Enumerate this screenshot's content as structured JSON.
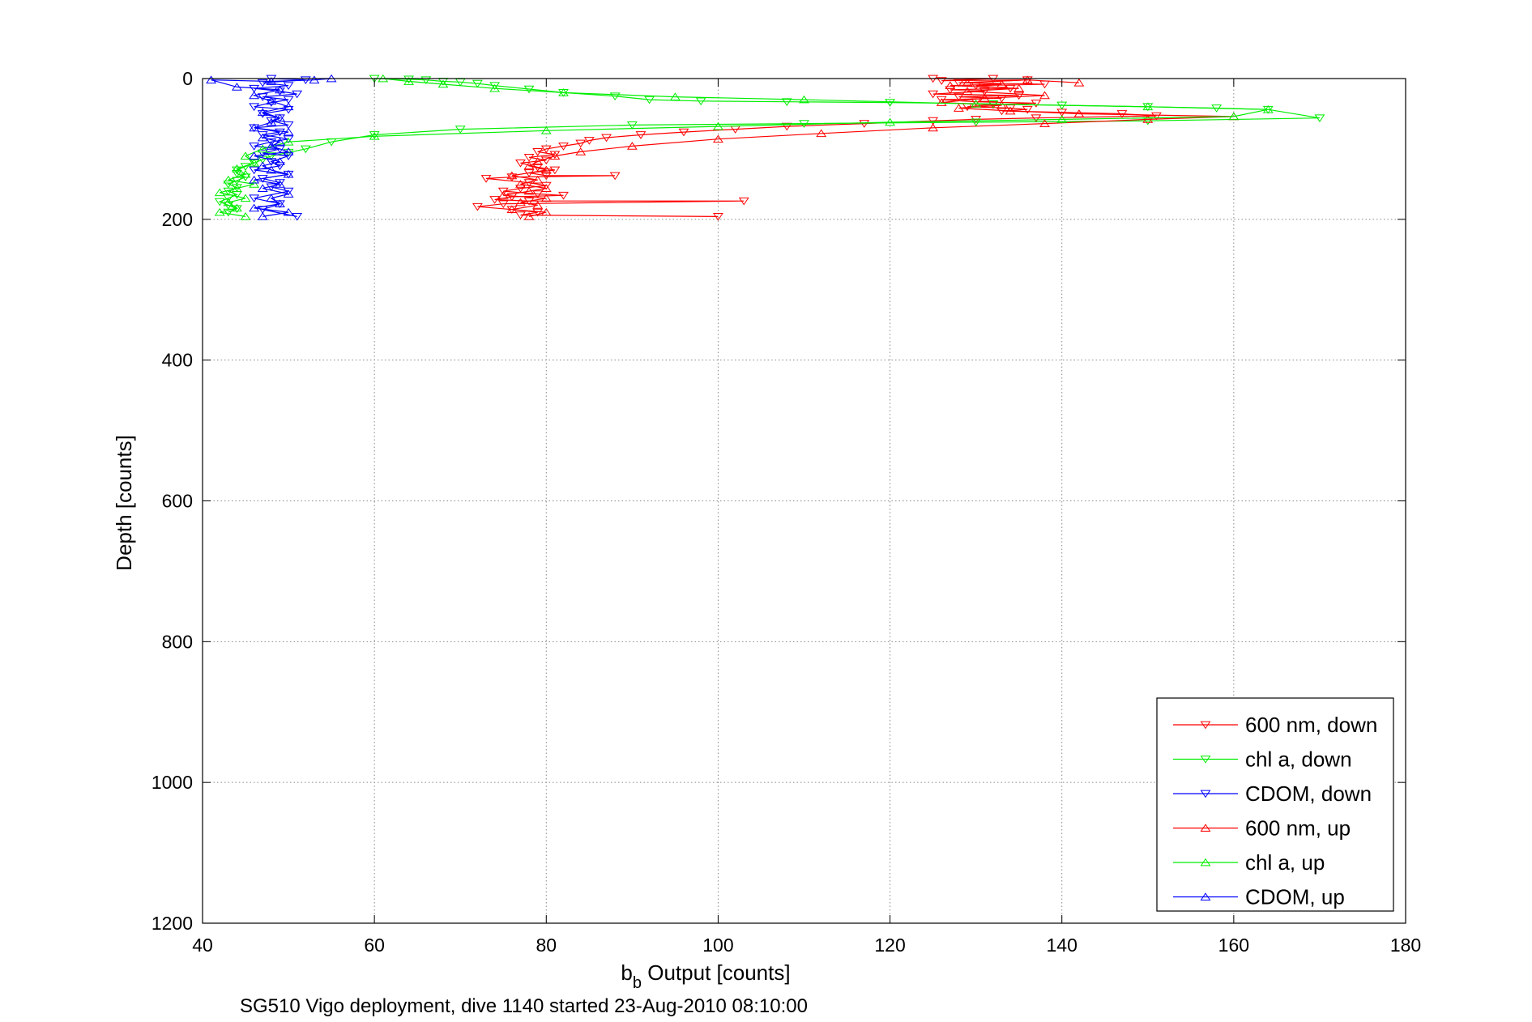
{
  "chart_data": {
    "type": "line",
    "xlabel": "b",
    "xlabel_sub": "b",
    "xlabel_rest": " Output [counts]",
    "ylabel": "Depth [counts]",
    "caption": "SG510 Vigo deployment, dive 1140 started 23-Aug-2010 08:10:00",
    "xlim": [
      40,
      180
    ],
    "ylim": [
      0,
      1200
    ],
    "y_reversed": true,
    "x_ticks": [
      40,
      60,
      80,
      100,
      120,
      140,
      160,
      180
    ],
    "y_ticks": [
      0,
      200,
      400,
      600,
      800,
      1000,
      1200
    ],
    "grid": true,
    "legend_position": "bottom-right",
    "series": [
      {
        "name": "600 nm, down",
        "color": "#ff0000",
        "marker": "triangle-down",
        "x": [
          125,
          132,
          126,
          136,
          128,
          138,
          130,
          134,
          127,
          131,
          125,
          135,
          128,
          133,
          126,
          130,
          137,
          132,
          129,
          134,
          136,
          133,
          140,
          147,
          151,
          137,
          130,
          125,
          117,
          108,
          102,
          96,
          91,
          87,
          85,
          84,
          82,
          80,
          79,
          81,
          78,
          80,
          77,
          79,
          81,
          78,
          80,
          88,
          76,
          73,
          78,
          80,
          77,
          75,
          79,
          82,
          76,
          74,
          78,
          103,
          75,
          72,
          76,
          79,
          77,
          100
        ],
        "y": [
          0,
          0,
          3,
          2,
          6,
          8,
          10,
          14,
          16,
          18,
          22,
          24,
          26,
          28,
          30,
          33,
          35,
          37,
          40,
          42,
          44,
          46,
          48,
          50,
          53,
          56,
          58,
          60,
          64,
          68,
          72,
          76,
          80,
          84,
          88,
          92,
          96,
          100,
          104,
          108,
          112,
          116,
          120,
          126,
          130,
          134,
          138,
          138,
          140,
          142,
          148,
          152,
          156,
          160,
          164,
          166,
          168,
          172,
          174,
          174,
          178,
          182,
          186,
          190,
          194,
          196
        ]
      },
      {
        "name": "chl a, down",
        "color": "#00ee00",
        "marker": "triangle-down",
        "x": [
          60,
          64,
          66,
          68,
          70,
          72,
          74,
          78,
          82,
          88,
          92,
          98,
          108,
          120,
          132,
          140,
          150,
          158,
          164,
          170,
          150,
          130,
          110,
          90,
          70,
          60,
          55,
          52,
          50,
          48,
          47,
          46,
          45,
          44,
          44,
          45,
          44,
          43,
          44,
          43,
          44,
          43,
          42,
          43,
          44,
          43
        ],
        "y": [
          0,
          1,
          2,
          4,
          5,
          7,
          10,
          15,
          20,
          25,
          30,
          32,
          33,
          34,
          36,
          38,
          40,
          42,
          44,
          56,
          60,
          62,
          64,
          66,
          72,
          80,
          90,
          100,
          105,
          110,
          115,
          120,
          125,
          130,
          135,
          140,
          145,
          150,
          155,
          160,
          165,
          170,
          175,
          180,
          185,
          190
        ]
      },
      {
        "name": "CDOM, down",
        "color": "#0000ff",
        "marker": "triangle-down",
        "x": [
          48,
          52,
          47,
          50,
          46,
          49,
          51,
          47,
          50,
          48,
          46,
          50,
          47,
          49,
          48,
          50,
          46,
          49,
          47,
          50,
          48,
          46,
          49,
          47,
          50,
          48,
          49,
          46,
          50,
          47,
          49,
          48,
          50,
          46,
          49,
          47,
          51
        ],
        "y": [
          0,
          2,
          6,
          10,
          14,
          18,
          22,
          26,
          30,
          34,
          40,
          44,
          50,
          56,
          60,
          66,
          70,
          76,
          80,
          86,
          90,
          96,
          100,
          106,
          110,
          118,
          124,
          130,
          136,
          142,
          148,
          154,
          160,
          170,
          178,
          186,
          196
        ]
      },
      {
        "name": "600 nm, up",
        "color": "#ff0000",
        "marker": "triangle-up",
        "x": [
          78,
          80,
          76,
          79,
          77,
          80,
          75,
          78,
          80,
          77,
          79,
          76,
          80,
          78,
          79,
          81,
          84,
          90,
          100,
          112,
          125,
          138,
          150,
          160,
          142,
          134,
          128,
          133,
          126,
          131,
          138,
          129,
          135,
          127,
          133,
          129,
          136,
          142
        ],
        "y": [
          196,
          190,
          186,
          180,
          176,
          170,
          166,
          160,
          156,
          150,
          144,
          138,
          130,
          124,
          118,
          110,
          104,
          96,
          86,
          78,
          70,
          64,
          58,
          54,
          50,
          46,
          42,
          38,
          34,
          28,
          24,
          18,
          14,
          10,
          8,
          6,
          2,
          6
        ]
      },
      {
        "name": "chl a, up",
        "color": "#00ee00",
        "marker": "triangle-up",
        "x": [
          45,
          42,
          44,
          43,
          45,
          42,
          44,
          46,
          43,
          45,
          44,
          46,
          45,
          47,
          50,
          60,
          80,
          100,
          120,
          140,
          160,
          164,
          150,
          130,
          110,
          95,
          82,
          74,
          68,
          64,
          61
        ],
        "y": [
          196,
          190,
          184,
          176,
          170,
          162,
          156,
          150,
          144,
          136,
          128,
          120,
          110,
          100,
          90,
          82,
          74,
          68,
          62,
          58,
          54,
          44,
          40,
          36,
          30,
          26,
          20,
          14,
          8,
          4,
          0
        ]
      },
      {
        "name": "CDOM, up",
        "color": "#0000ff",
        "marker": "triangle-up",
        "x": [
          47,
          50,
          46,
          49,
          48,
          50,
          47,
          49,
          46,
          50,
          48,
          47,
          49,
          46,
          50,
          48,
          49,
          47,
          50,
          46,
          48,
          49,
          47,
          50,
          48,
          46,
          49,
          44,
          41,
          48,
          53,
          55
        ],
        "y": [
          196,
          190,
          184,
          178,
          170,
          164,
          156,
          150,
          144,
          136,
          130,
          124,
          118,
          110,
          104,
          96,
          90,
          84,
          76,
          70,
          62,
          56,
          48,
          40,
          32,
          24,
          16,
          12,
          2,
          4,
          2,
          0
        ]
      }
    ]
  }
}
